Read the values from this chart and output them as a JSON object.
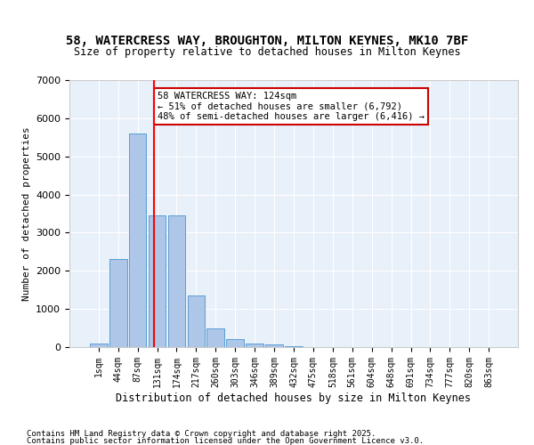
{
  "title1": "58, WATERCRESS WAY, BROUGHTON, MILTON KEYNES, MK10 7BF",
  "title2": "Size of property relative to detached houses in Milton Keynes",
  "xlabel": "Distribution of detached houses by size in Milton Keynes",
  "ylabel": "Number of detached properties",
  "bin_labels": [
    "1sqm",
    "44sqm",
    "87sqm",
    "131sqm",
    "174sqm",
    "217sqm",
    "260sqm",
    "303sqm",
    "346sqm",
    "389sqm",
    "432sqm",
    "475sqm",
    "518sqm",
    "561sqm",
    "604sqm",
    "648sqm",
    "691sqm",
    "734sqm",
    "777sqm",
    "820sqm",
    "863sqm"
  ],
  "bar_values": [
    100,
    2300,
    5600,
    3450,
    3450,
    1350,
    500,
    200,
    100,
    75,
    30,
    0,
    0,
    0,
    0,
    0,
    0,
    0,
    0,
    0,
    0
  ],
  "bar_color": "#aec6e8",
  "bar_edge_color": "#5a9fd4",
  "vline_x": 2.79,
  "vline_color": "#ff0000",
  "annotation_text": "58 WATERCRESS WAY: 124sqm\n← 51% of detached houses are smaller (6,792)\n48% of semi-detached houses are larger (6,416) →",
  "annotation_box_color": "#ffffff",
  "annotation_box_edge": "#cc0000",
  "ylim": [
    0,
    7000
  ],
  "yticks": [
    0,
    1000,
    2000,
    3000,
    4000,
    5000,
    6000,
    7000
  ],
  "background_color": "#e8f0fa",
  "footer1": "Contains HM Land Registry data © Crown copyright and database right 2025.",
  "footer2": "Contains public sector information licensed under the Open Government Licence v3.0.",
  "title_fontsize": 10,
  "subtitle_fontsize": 9
}
